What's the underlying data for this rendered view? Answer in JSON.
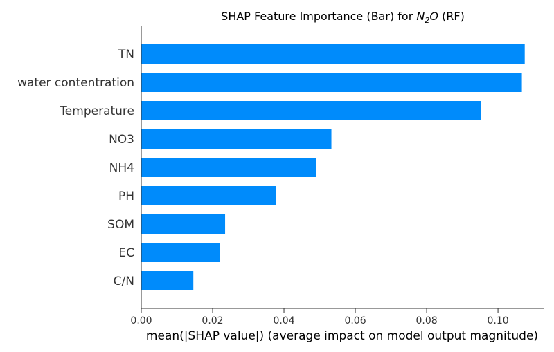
{
  "chart_data": {
    "type": "bar",
    "orientation": "horizontal",
    "title": {
      "prefix": "SHAP Feature Importance (Bar) for ",
      "formula_base": "N",
      "formula_sub": "2",
      "formula_tail": "O",
      "suffix": " (RF)"
    },
    "xlabel": "mean(|SHAP value|) (average impact on model output magnitude)",
    "xlim": [
      0,
      0.1128
    ],
    "xticks": [
      {
        "value": 0.0,
        "label": "0.00"
      },
      {
        "value": 0.02,
        "label": "0.02"
      },
      {
        "value": 0.04,
        "label": "0.04"
      },
      {
        "value": 0.06,
        "label": "0.06"
      },
      {
        "value": 0.08,
        "label": "0.08"
      },
      {
        "value": 0.1,
        "label": "0.10"
      }
    ],
    "categories": [
      "TN",
      "water contentration",
      "Temperature",
      "NO3",
      "NH4",
      "PH",
      "SOM",
      "EC",
      "C/N"
    ],
    "values": [
      0.1075,
      0.1067,
      0.0952,
      0.0533,
      0.049,
      0.0377,
      0.0235,
      0.022,
      0.0146
    ],
    "bar_color": "#008bfb",
    "grid": false,
    "legend": "none"
  }
}
